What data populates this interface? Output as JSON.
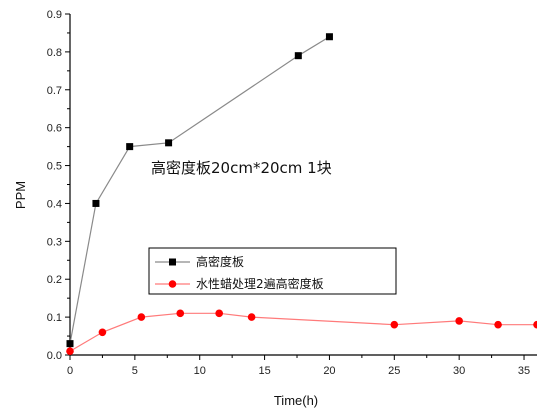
{
  "chart_data": {
    "type": "line",
    "xlabel": "Time(h)",
    "ylabel": "PPM",
    "xlim": [
      0,
      36
    ],
    "ylim": [
      0,
      0.9
    ],
    "x_ticks": [
      0,
      5,
      10,
      15,
      20,
      25,
      30,
      35
    ],
    "x_tick_labels": [
      "0",
      "5",
      "10",
      "15",
      "20",
      "25",
      "30",
      "35"
    ],
    "y_ticks": [
      0.0,
      0.1,
      0.2,
      0.3,
      0.4,
      0.5,
      0.6,
      0.7,
      0.8,
      0.9
    ],
    "y_tick_labels": [
      "0.0",
      "0.1",
      "0.2",
      "0.3",
      "0.4",
      "0.5",
      "0.6",
      "0.7",
      "0.8",
      "0.9"
    ],
    "grid": false,
    "legend_placement": "center-right",
    "annotation": "高密度板20cm*20cm 1块",
    "series": [
      {
        "name": "高密度板",
        "marker": "square",
        "color": "#000000",
        "line_color": "#8a8a8a",
        "x": [
          0,
          2,
          4.6,
          7.6,
          17.6,
          20
        ],
        "y": [
          0.03,
          0.4,
          0.55,
          0.56,
          0.79,
          0.84
        ]
      },
      {
        "name": "水性蜡处理2遍高密度板",
        "marker": "circle",
        "color": "#ff0000",
        "line_color": "#ff7a7a",
        "x": [
          0,
          2.5,
          5.5,
          8.5,
          11.5,
          14,
          25,
          30,
          33,
          36
        ],
        "y": [
          0.01,
          0.06,
          0.1,
          0.11,
          0.11,
          0.1,
          0.08,
          0.09,
          0.08,
          0.08
        ]
      }
    ]
  }
}
